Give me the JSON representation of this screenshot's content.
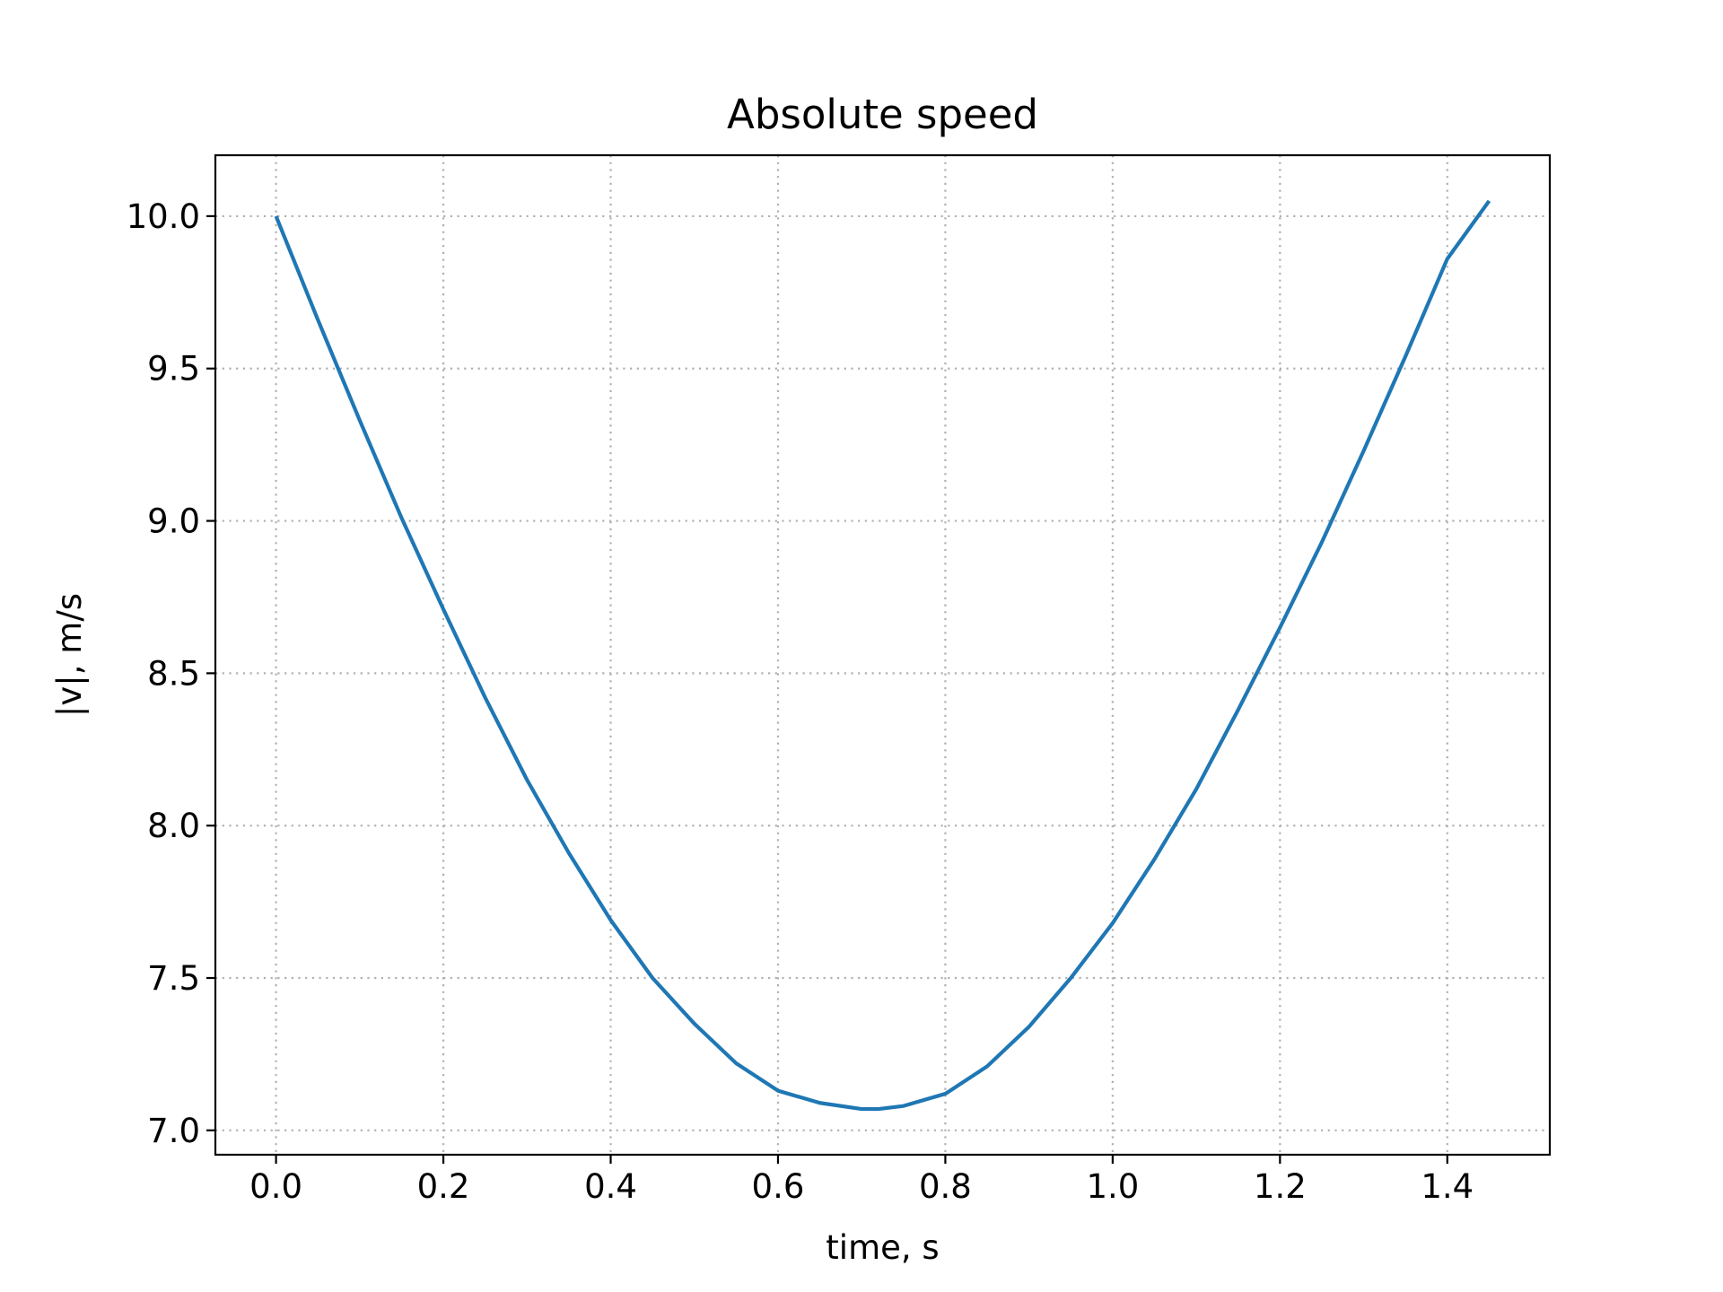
{
  "chart_data": {
    "type": "line",
    "title": "Absolute speed",
    "xlabel": "time, s",
    "ylabel": "|v|, m/s",
    "xlim": [
      -0.0725,
      1.5225
    ],
    "ylim": [
      6.92,
      10.2
    ],
    "xticks": [
      0.0,
      0.2,
      0.4,
      0.6,
      0.8,
      1.0,
      1.2,
      1.4
    ],
    "xtick_labels": [
      "0.0",
      "0.2",
      "0.4",
      "0.6",
      "0.8",
      "1.0",
      "1.2",
      "1.4"
    ],
    "yticks": [
      7.0,
      7.5,
      8.0,
      8.5,
      9.0,
      9.5,
      10.0
    ],
    "ytick_labels": [
      "7.0",
      "7.5",
      "8.0",
      "8.5",
      "9.0",
      "9.5",
      "10.0"
    ],
    "grid": true,
    "series": [
      {
        "color": "#1f77b4",
        "x": [
          0.0,
          0.05,
          0.1,
          0.15,
          0.2,
          0.25,
          0.3,
          0.35,
          0.4,
          0.45,
          0.5,
          0.55,
          0.6,
          0.65,
          0.7,
          0.72,
          0.75,
          0.8,
          0.85,
          0.9,
          0.95,
          1.0,
          1.05,
          1.1,
          1.15,
          1.2,
          1.25,
          1.3,
          1.35,
          1.4,
          1.45
        ],
        "y": [
          10.0,
          9.66,
          9.33,
          9.01,
          8.71,
          8.42,
          8.15,
          7.91,
          7.69,
          7.5,
          7.35,
          7.22,
          7.13,
          7.09,
          7.07,
          7.07,
          7.08,
          7.12,
          7.21,
          7.34,
          7.5,
          7.68,
          7.89,
          8.12,
          8.38,
          8.65,
          8.93,
          9.23,
          9.54,
          9.86,
          10.05
        ]
      }
    ]
  }
}
